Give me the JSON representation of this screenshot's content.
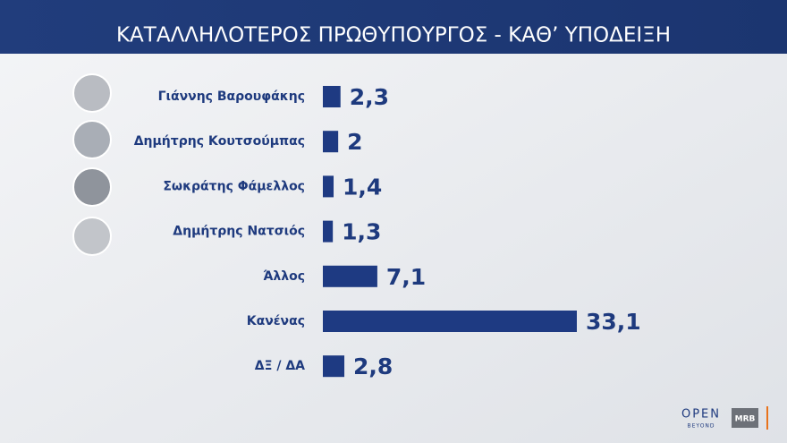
{
  "chart_data": {
    "type": "bar",
    "orientation": "horizontal",
    "title": "ΚΑΤΑΛΛΗΛΟΤΕΡΟΣ  ΠΡΩΘΥΠΟΥΡΓΟΣ - ΚΑΘ’ ΥΠΟΔΕΙΞΗ",
    "categories": [
      "Γιάννης Βαρουφάκης",
      "Δημήτρης Κουτσούμπας",
      "Σωκράτης Φάμελλος",
      "Δημήτρης Νατσιός",
      "Άλλος",
      "Κανένας",
      "ΔΞ / ΔΑ"
    ],
    "values": [
      2.3,
      2,
      1.4,
      1.3,
      7.1,
      33.1,
      2.8
    ],
    "value_labels": [
      "2,3",
      "2",
      "1,4",
      "1,3",
      "7,1",
      "33,1",
      "2,8"
    ],
    "color": "#1e3a82"
  },
  "footer": {
    "brand": "OPEN",
    "brand_sub": "BEYOND",
    "pollster": "MRB"
  }
}
